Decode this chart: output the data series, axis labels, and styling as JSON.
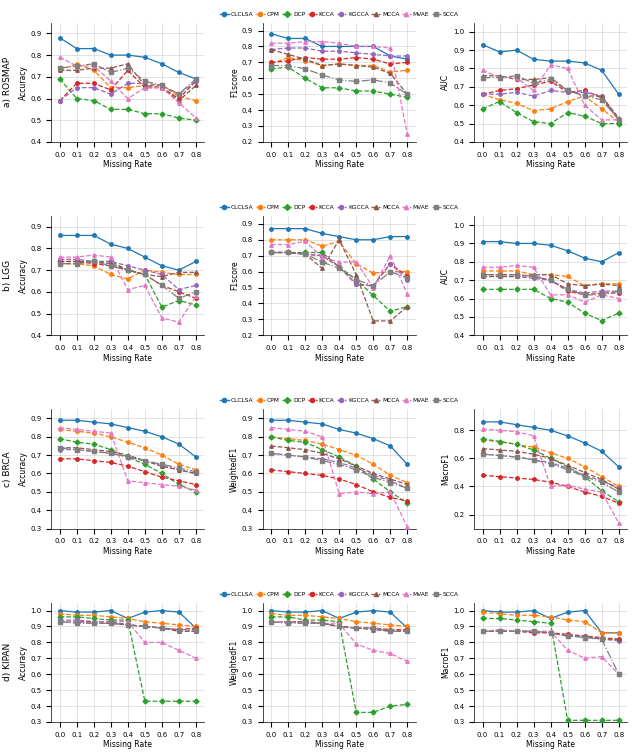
{
  "x": [
    0.0,
    0.1,
    0.2,
    0.3,
    0.4,
    0.5,
    0.6,
    0.7,
    0.8
  ],
  "methods": [
    "CLCLSA",
    "CPM",
    "DCP",
    "KCCA",
    "KGCCA",
    "MCCA",
    "MVAE",
    "SCCA"
  ],
  "colors": [
    "#1f77b4",
    "#ff7f0e",
    "#2ca02c",
    "#d62728",
    "#9467bd",
    "#8c564b",
    "#e377c2",
    "#7f7f7f"
  ],
  "styles": [
    "-",
    "--",
    "--",
    "--",
    "--",
    "--",
    "--",
    "-."
  ],
  "markers": [
    "o",
    "o",
    "D",
    "o",
    "o",
    "^",
    "^",
    "s"
  ],
  "rosmap_accuracy": {
    "CLCLSA": [
      0.88,
      0.83,
      0.83,
      0.8,
      0.8,
      0.79,
      0.76,
      0.72,
      0.69
    ],
    "CPM": [
      0.73,
      0.76,
      0.73,
      0.65,
      0.65,
      0.66,
      0.66,
      0.61,
      0.59
    ],
    "DCP": [
      0.69,
      0.6,
      0.59,
      0.55,
      0.55,
      0.53,
      0.53,
      0.51,
      0.5
    ],
    "KCCA": [
      0.59,
      0.67,
      0.67,
      0.64,
      0.73,
      0.65,
      0.65,
      0.6,
      0.68
    ],
    "KGCCA": [
      0.59,
      0.65,
      0.65,
      0.62,
      0.67,
      0.67,
      0.66,
      0.62,
      0.68
    ],
    "MCCA": [
      0.73,
      0.73,
      0.74,
      0.74,
      0.76,
      0.66,
      0.65,
      0.59,
      0.66
    ],
    "MVAE": [
      0.79,
      0.75,
      0.75,
      0.68,
      0.6,
      0.65,
      0.65,
      0.58,
      0.51
    ],
    "SCCA": [
      0.74,
      0.75,
      0.76,
      0.72,
      0.74,
      0.68,
      0.66,
      0.62,
      0.69
    ]
  },
  "rosmap_f1score": {
    "CLCLSA": [
      0.88,
      0.85,
      0.85,
      0.8,
      0.8,
      0.8,
      0.8,
      0.74,
      0.72
    ],
    "CPM": [
      0.69,
      0.73,
      0.71,
      0.68,
      0.69,
      0.68,
      0.68,
      0.64,
      0.65
    ],
    "DCP": [
      0.66,
      0.67,
      0.6,
      0.54,
      0.54,
      0.52,
      0.52,
      0.5,
      0.48
    ],
    "KCCA": [
      0.7,
      0.71,
      0.73,
      0.72,
      0.72,
      0.73,
      0.72,
      0.69,
      0.7
    ],
    "KGCCA": [
      0.78,
      0.79,
      0.79,
      0.77,
      0.77,
      0.76,
      0.75,
      0.74,
      0.74
    ],
    "MCCA": [
      0.78,
      0.75,
      0.72,
      0.68,
      0.69,
      0.68,
      0.67,
      0.63,
      0.5
    ],
    "MVAE": [
      0.82,
      0.82,
      0.83,
      0.83,
      0.82,
      0.8,
      0.8,
      0.79,
      0.25
    ],
    "SCCA": [
      0.68,
      0.68,
      0.66,
      0.62,
      0.59,
      0.58,
      0.59,
      0.57,
      0.5
    ]
  },
  "rosmap_auc": {
    "CLCLSA": [
      0.93,
      0.89,
      0.9,
      0.85,
      0.84,
      0.84,
      0.83,
      0.79,
      0.66
    ],
    "CPM": [
      0.66,
      0.63,
      0.61,
      0.57,
      0.58,
      0.62,
      0.65,
      0.58,
      0.51
    ],
    "DCP": [
      0.58,
      0.62,
      0.56,
      0.51,
      0.5,
      0.56,
      0.54,
      0.5,
      0.5
    ],
    "KCCA": [
      0.66,
      0.68,
      0.69,
      0.71,
      0.73,
      0.67,
      0.68,
      0.64,
      0.52
    ],
    "KGCCA": [
      0.66,
      0.66,
      0.67,
      0.65,
      0.68,
      0.67,
      0.67,
      0.65,
      0.52
    ],
    "MCCA": [
      0.76,
      0.76,
      0.74,
      0.74,
      0.75,
      0.68,
      0.65,
      0.65,
      0.53
    ],
    "MVAE": [
      0.79,
      0.75,
      0.75,
      0.68,
      0.82,
      0.8,
      0.6,
      0.52,
      0.52
    ],
    "SCCA": [
      0.75,
      0.75,
      0.76,
      0.72,
      0.74,
      0.68,
      0.65,
      0.63,
      0.52
    ]
  },
  "lgg_accuracy": {
    "CLCLSA": [
      0.86,
      0.86,
      0.86,
      0.82,
      0.8,
      0.76,
      0.72,
      0.7,
      0.74
    ],
    "CPM": [
      0.73,
      0.73,
      0.72,
      0.68,
      0.66,
      0.7,
      0.69,
      0.68,
      0.68
    ],
    "DCP": [
      0.74,
      0.74,
      0.74,
      0.74,
      0.7,
      0.68,
      0.53,
      0.56,
      0.54
    ],
    "KCCA": [
      0.74,
      0.74,
      0.73,
      0.72,
      0.7,
      0.68,
      0.63,
      0.6,
      0.57
    ],
    "KGCCA": [
      0.75,
      0.75,
      0.74,
      0.74,
      0.72,
      0.7,
      0.68,
      0.61,
      0.63
    ],
    "MCCA": [
      0.73,
      0.73,
      0.74,
      0.73,
      0.7,
      0.68,
      0.67,
      0.69,
      0.69
    ],
    "MVAE": [
      0.76,
      0.76,
      0.77,
      0.76,
      0.61,
      0.63,
      0.48,
      0.46,
      0.58
    ],
    "SCCA": [
      0.73,
      0.73,
      0.74,
      0.72,
      0.7,
      0.68,
      0.63,
      0.57,
      0.6
    ]
  },
  "lgg_f1score": {
    "CLCLSA": [
      0.87,
      0.87,
      0.87,
      0.84,
      0.82,
      0.8,
      0.8,
      0.82,
      0.82
    ],
    "CPM": [
      0.8,
      0.8,
      0.8,
      0.76,
      0.79,
      0.65,
      0.59,
      0.6,
      0.6
    ],
    "DCP": [
      0.72,
      0.72,
      0.72,
      0.72,
      0.63,
      0.55,
      0.45,
      0.35,
      0.38
    ],
    "KCCA": [
      0.72,
      0.72,
      0.71,
      0.7,
      0.63,
      0.52,
      0.51,
      0.65,
      0.57
    ],
    "KGCCA": [
      0.72,
      0.72,
      0.71,
      0.7,
      0.63,
      0.52,
      0.51,
      0.65,
      0.55
    ],
    "MCCA": [
      0.72,
      0.72,
      0.71,
      0.62,
      0.8,
      0.58,
      0.29,
      0.29,
      0.38
    ],
    "MVAE": [
      0.77,
      0.77,
      0.79,
      0.69,
      0.66,
      0.66,
      0.5,
      0.7,
      0.46
    ],
    "SCCA": [
      0.72,
      0.72,
      0.71,
      0.66,
      0.62,
      0.55,
      0.51,
      0.6,
      0.56
    ]
  },
  "lgg_auc": {
    "CLCLSA": [
      0.91,
      0.91,
      0.9,
      0.9,
      0.89,
      0.86,
      0.82,
      0.8,
      0.85
    ],
    "CPM": [
      0.75,
      0.75,
      0.75,
      0.73,
      0.73,
      0.72,
      0.67,
      0.68,
      0.68
    ],
    "DCP": [
      0.65,
      0.65,
      0.65,
      0.65,
      0.6,
      0.58,
      0.52,
      0.48,
      0.52
    ],
    "KCCA": [
      0.73,
      0.73,
      0.73,
      0.72,
      0.7,
      0.64,
      0.62,
      0.63,
      0.63
    ],
    "KGCCA": [
      0.72,
      0.72,
      0.72,
      0.71,
      0.7,
      0.65,
      0.63,
      0.64,
      0.64
    ],
    "MCCA": [
      0.72,
      0.72,
      0.72,
      0.73,
      0.73,
      0.68,
      0.67,
      0.68,
      0.67
    ],
    "MVAE": [
      0.77,
      0.77,
      0.78,
      0.77,
      0.62,
      0.62,
      0.58,
      0.62,
      0.6
    ],
    "SCCA": [
      0.73,
      0.73,
      0.73,
      0.72,
      0.7,
      0.65,
      0.62,
      0.62,
      0.64
    ]
  },
  "brca_accuracy": {
    "CLCLSA": [
      0.89,
      0.89,
      0.88,
      0.87,
      0.85,
      0.83,
      0.8,
      0.76,
      0.69
    ],
    "CPM": [
      0.84,
      0.83,
      0.82,
      0.8,
      0.77,
      0.74,
      0.7,
      0.65,
      0.62
    ],
    "DCP": [
      0.79,
      0.77,
      0.76,
      0.73,
      0.69,
      0.65,
      0.6,
      0.54,
      0.5
    ],
    "KCCA": [
      0.68,
      0.68,
      0.67,
      0.66,
      0.64,
      0.61,
      0.58,
      0.56,
      0.54
    ],
    "KGCCA": [
      0.73,
      0.73,
      0.72,
      0.71,
      0.69,
      0.67,
      0.64,
      0.62,
      0.6
    ],
    "MCCA": [
      0.74,
      0.74,
      0.73,
      0.72,
      0.7,
      0.67,
      0.64,
      0.62,
      0.6
    ],
    "MVAE": [
      0.85,
      0.84,
      0.83,
      0.82,
      0.56,
      0.55,
      0.54,
      0.53,
      0.51
    ],
    "SCCA": [
      0.74,
      0.73,
      0.72,
      0.71,
      0.69,
      0.67,
      0.65,
      0.63,
      0.61
    ]
  },
  "brca_weightedf1": {
    "CLCLSA": [
      0.89,
      0.89,
      0.88,
      0.87,
      0.84,
      0.82,
      0.79,
      0.75,
      0.65
    ],
    "CPM": [
      0.8,
      0.79,
      0.78,
      0.76,
      0.73,
      0.7,
      0.65,
      0.59,
      0.55
    ],
    "DCP": [
      0.8,
      0.78,
      0.77,
      0.73,
      0.69,
      0.64,
      0.57,
      0.5,
      0.44
    ],
    "KCCA": [
      0.62,
      0.61,
      0.6,
      0.59,
      0.57,
      0.54,
      0.5,
      0.47,
      0.45
    ],
    "KGCCA": [
      0.71,
      0.7,
      0.69,
      0.68,
      0.66,
      0.63,
      0.59,
      0.56,
      0.52
    ],
    "MCCA": [
      0.75,
      0.74,
      0.73,
      0.71,
      0.68,
      0.64,
      0.6,
      0.57,
      0.54
    ],
    "MVAE": [
      0.85,
      0.84,
      0.83,
      0.8,
      0.49,
      0.5,
      0.49,
      0.5,
      0.31
    ],
    "SCCA": [
      0.71,
      0.7,
      0.69,
      0.67,
      0.65,
      0.62,
      0.58,
      0.55,
      0.52
    ]
  },
  "brca_macrof1": {
    "CLCLSA": [
      0.86,
      0.86,
      0.84,
      0.82,
      0.8,
      0.76,
      0.71,
      0.65,
      0.54
    ],
    "CPM": [
      0.73,
      0.72,
      0.7,
      0.68,
      0.64,
      0.6,
      0.54,
      0.47,
      0.4
    ],
    "DCP": [
      0.74,
      0.72,
      0.7,
      0.66,
      0.6,
      0.54,
      0.47,
      0.37,
      0.29
    ],
    "KCCA": [
      0.48,
      0.47,
      0.46,
      0.45,
      0.43,
      0.4,
      0.36,
      0.33,
      0.28
    ],
    "KGCCA": [
      0.63,
      0.62,
      0.61,
      0.59,
      0.57,
      0.53,
      0.48,
      0.44,
      0.39
    ],
    "MCCA": [
      0.67,
      0.66,
      0.65,
      0.63,
      0.6,
      0.55,
      0.5,
      0.45,
      0.38
    ],
    "MVAE": [
      0.81,
      0.8,
      0.79,
      0.76,
      0.4,
      0.41,
      0.38,
      0.36,
      0.14
    ],
    "SCCA": [
      0.63,
      0.62,
      0.61,
      0.59,
      0.56,
      0.52,
      0.47,
      0.43,
      0.36
    ]
  },
  "kipan_accuracy": {
    "CLCLSA": [
      1.0,
      0.99,
      0.99,
      1.0,
      0.95,
      0.99,
      1.0,
      0.99,
      0.89
    ],
    "CPM": [
      0.98,
      0.97,
      0.97,
      0.96,
      0.95,
      0.93,
      0.92,
      0.91,
      0.9
    ],
    "DCP": [
      0.96,
      0.96,
      0.95,
      0.94,
      0.94,
      0.43,
      0.43,
      0.43,
      0.43
    ],
    "KCCA": [
      0.93,
      0.93,
      0.92,
      0.92,
      0.91,
      0.9,
      0.89,
      0.88,
      0.89
    ],
    "KGCCA": [
      0.94,
      0.94,
      0.93,
      0.93,
      0.91,
      0.9,
      0.89,
      0.87,
      0.87
    ],
    "MCCA": [
      0.93,
      0.93,
      0.93,
      0.92,
      0.91,
      0.9,
      0.89,
      0.87,
      0.87
    ],
    "MVAE": [
      0.93,
      0.93,
      0.92,
      0.93,
      0.93,
      0.8,
      0.8,
      0.75,
      0.7
    ],
    "SCCA": [
      0.93,
      0.92,
      0.92,
      0.92,
      0.91,
      0.9,
      0.89,
      0.88,
      0.88
    ]
  },
  "kipan_weightedf1": {
    "CLCLSA": [
      1.0,
      0.99,
      0.99,
      1.0,
      0.95,
      0.99,
      1.0,
      0.99,
      0.89
    ],
    "CPM": [
      0.98,
      0.97,
      0.97,
      0.96,
      0.95,
      0.93,
      0.92,
      0.91,
      0.9
    ],
    "DCP": [
      0.96,
      0.96,
      0.94,
      0.94,
      0.93,
      0.36,
      0.36,
      0.4,
      0.41
    ],
    "KCCA": [
      0.93,
      0.93,
      0.92,
      0.92,
      0.9,
      0.89,
      0.89,
      0.88,
      0.88
    ],
    "KGCCA": [
      0.93,
      0.93,
      0.93,
      0.92,
      0.9,
      0.89,
      0.89,
      0.87,
      0.87
    ],
    "MCCA": [
      0.93,
      0.93,
      0.93,
      0.92,
      0.9,
      0.89,
      0.88,
      0.87,
      0.87
    ],
    "MVAE": [
      0.93,
      0.93,
      0.92,
      0.92,
      0.92,
      0.79,
      0.75,
      0.73,
      0.68
    ],
    "SCCA": [
      0.93,
      0.92,
      0.92,
      0.92,
      0.9,
      0.89,
      0.89,
      0.87,
      0.87
    ]
  },
  "kipan_macrof1": {
    "CLCLSA": [
      1.0,
      0.99,
      0.99,
      1.0,
      0.95,
      0.99,
      1.0,
      0.86,
      0.86
    ],
    "CPM": [
      0.99,
      0.98,
      0.97,
      0.97,
      0.96,
      0.94,
      0.93,
      0.86,
      0.86
    ],
    "DCP": [
      0.95,
      0.95,
      0.94,
      0.93,
      0.92,
      0.31,
      0.31,
      0.31,
      0.31
    ],
    "KCCA": [
      0.87,
      0.87,
      0.87,
      0.86,
      0.86,
      0.85,
      0.84,
      0.83,
      0.82
    ],
    "KGCCA": [
      0.87,
      0.87,
      0.87,
      0.87,
      0.86,
      0.84,
      0.84,
      0.82,
      0.81
    ],
    "MCCA": [
      0.87,
      0.87,
      0.87,
      0.87,
      0.86,
      0.84,
      0.84,
      0.82,
      0.82
    ],
    "MVAE": [
      0.87,
      0.88,
      0.87,
      0.87,
      0.87,
      0.75,
      0.7,
      0.71,
      0.6
    ],
    "SCCA": [
      0.87,
      0.87,
      0.87,
      0.87,
      0.86,
      0.84,
      0.83,
      0.82,
      0.6
    ]
  },
  "ylims": {
    "rosmap_accuracy": [
      0.4,
      0.95
    ],
    "rosmap_f1score": [
      0.2,
      0.95
    ],
    "rosmap_auc": [
      0.4,
      1.05
    ],
    "lgg_accuracy": [
      0.4,
      0.95
    ],
    "lgg_f1score": [
      0.2,
      0.95
    ],
    "lgg_auc": [
      0.4,
      1.05
    ],
    "brca_accuracy": [
      0.3,
      0.95
    ],
    "brca_weightedf1": [
      0.3,
      0.95
    ],
    "brca_macrof1": [
      0.1,
      0.95
    ],
    "kipan_accuracy": [
      0.3,
      1.05
    ],
    "kipan_weightedf1": [
      0.3,
      1.05
    ],
    "kipan_macrof1": [
      0.3,
      1.05
    ]
  },
  "ylabels": {
    "rosmap_accuracy": "Accuracy",
    "rosmap_f1score": "F1score",
    "rosmap_auc": "AUC",
    "lgg_accuracy": "Accuracy",
    "lgg_f1score": "F1score",
    "lgg_auc": "AUC",
    "brca_accuracy": "Accuracy",
    "brca_weightedf1": "WeightedF1",
    "brca_macrof1": "MacroF1",
    "kipan_accuracy": "Accuracy",
    "kipan_weightedf1": "WeightedF1",
    "kipan_macrof1": "MacroF1"
  },
  "row_labels": [
    "a) ROSMAP",
    "b) LGG",
    "c) BRCA",
    "d) KIPAN"
  ],
  "subplot_configs": [
    [
      "rosmap_accuracy",
      "rosmap_f1score",
      "rosmap_auc"
    ],
    [
      "lgg_accuracy",
      "lgg_f1score",
      "lgg_auc"
    ],
    [
      "brca_accuracy",
      "brca_weightedf1",
      "brca_macrof1"
    ],
    [
      "kipan_accuracy",
      "kipan_weightedf1",
      "kipan_macrof1"
    ]
  ]
}
